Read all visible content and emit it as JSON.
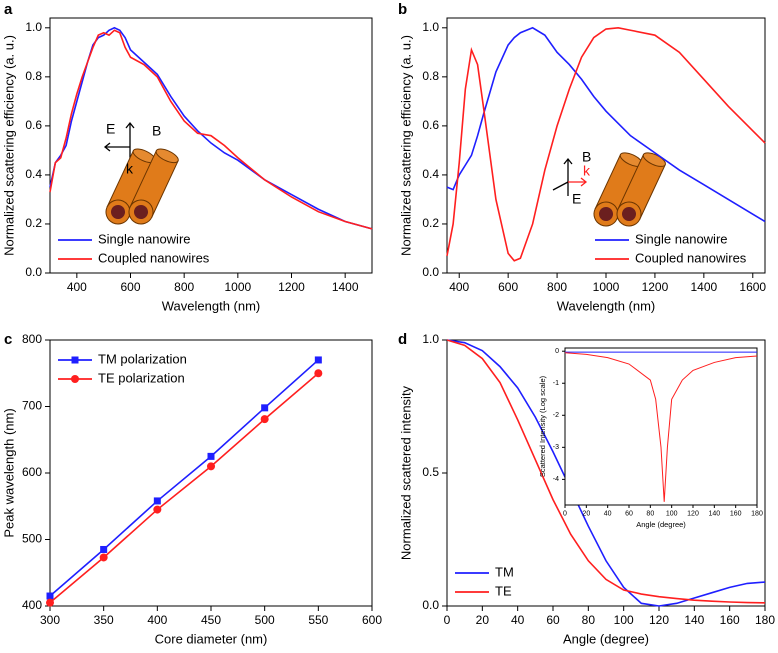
{
  "chart_data": [
    {
      "type": "line",
      "panel": "a",
      "x_label": "Wavelength (nm)",
      "y_label": "Normalized scattering efficiency (a. u.)",
      "xlim": [
        300,
        1500
      ],
      "xticks": [
        400,
        600,
        800,
        1000,
        1200,
        1400
      ],
      "ylim": [
        0,
        1.04
      ],
      "yticks": [
        {
          "value": 0,
          "label": "0.0"
        },
        0.2,
        0.4,
        0.6,
        0.8,
        {
          "value": 1,
          "label": "1.0"
        }
      ],
      "legend": "lower left",
      "annotations": [
        "E",
        "B",
        "k"
      ],
      "x": [
        300,
        320,
        340,
        360,
        380,
        400,
        420,
        440,
        460,
        480,
        500,
        520,
        540,
        560,
        580,
        600,
        650,
        700,
        750,
        800,
        850,
        900,
        950,
        1000,
        1100,
        1200,
        1300,
        1400,
        1500
      ],
      "series": [
        {
          "name": "Single nanowire",
          "color": "#1f1fff",
          "values": [
            0.35,
            0.45,
            0.48,
            0.52,
            0.62,
            0.7,
            0.78,
            0.86,
            0.93,
            0.96,
            0.97,
            0.99,
            1.0,
            0.99,
            0.96,
            0.91,
            0.86,
            0.81,
            0.72,
            0.64,
            0.58,
            0.53,
            0.49,
            0.46,
            0.38,
            0.32,
            0.26,
            0.21,
            0.18
          ]
        },
        {
          "name": "Coupled nanowires",
          "color": "#ff1f1f",
          "values": [
            0.33,
            0.45,
            0.47,
            0.55,
            0.65,
            0.73,
            0.8,
            0.86,
            0.92,
            0.97,
            0.98,
            0.97,
            0.99,
            0.98,
            0.92,
            0.88,
            0.85,
            0.8,
            0.7,
            0.62,
            0.57,
            0.56,
            0.52,
            0.47,
            0.38,
            0.31,
            0.25,
            0.21,
            0.18
          ]
        }
      ]
    },
    {
      "type": "line",
      "panel": "b",
      "x_label": "Wavelength (nm)",
      "y_label": "Normalized scattering efficiency (a. u.)",
      "xlim": [
        350,
        1650
      ],
      "xticks": [
        400,
        600,
        800,
        1000,
        1200,
        1400,
        1600
      ],
      "ylim": [
        0,
        1.04
      ],
      "yticks": [
        {
          "value": 0,
          "label": "0.0"
        },
        0.2,
        0.4,
        0.6,
        0.8,
        {
          "value": 1,
          "label": "1.0"
        }
      ],
      "legend": "lower right",
      "annotations": [
        "B",
        "k",
        "E"
      ],
      "x": [
        350,
        375,
        400,
        425,
        450,
        475,
        500,
        550,
        600,
        625,
        650,
        700,
        750,
        800,
        850,
        900,
        950,
        1000,
        1050,
        1100,
        1200,
        1300,
        1400,
        1500,
        1600,
        1650
      ],
      "series": [
        {
          "name": "Single nanowire",
          "color": "#1f1fff",
          "values": [
            0.35,
            0.34,
            0.4,
            0.44,
            0.48,
            0.56,
            0.65,
            0.82,
            0.93,
            0.96,
            0.98,
            1.0,
            0.97,
            0.9,
            0.85,
            0.79,
            0.72,
            0.66,
            0.61,
            0.56,
            0.49,
            0.42,
            0.36,
            0.3,
            0.24,
            0.21
          ]
        },
        {
          "name": "Coupled nanowires",
          "color": "#ff1f1f",
          "values": [
            0.07,
            0.2,
            0.45,
            0.75,
            0.91,
            0.85,
            0.67,
            0.3,
            0.08,
            0.05,
            0.06,
            0.2,
            0.42,
            0.6,
            0.75,
            0.88,
            0.96,
            0.995,
            1.0,
            0.99,
            0.97,
            0.9,
            0.79,
            0.68,
            0.58,
            0.53
          ]
        }
      ]
    },
    {
      "type": "line",
      "panel": "c",
      "x_label": "Core diameter (nm)",
      "y_label": "Peak wavelength (nm)",
      "xlim": [
        300,
        600
      ],
      "xticks": [
        300,
        350,
        400,
        450,
        500,
        550,
        600
      ],
      "ylim": [
        400,
        800
      ],
      "yticks": [
        400,
        500,
        600,
        700,
        800
      ],
      "legend": "upper left",
      "x": [
        300,
        350,
        400,
        450,
        500,
        550
      ],
      "series": [
        {
          "name": "TM polarization",
          "color": "#1f1fff",
          "marker": "square",
          "values": [
            415,
            485,
            558,
            625,
            698,
            770
          ]
        },
        {
          "name": "TE polarization",
          "color": "#ff1f1f",
          "marker": "circle",
          "values": [
            405,
            473,
            545,
            610,
            681,
            750
          ]
        }
      ]
    },
    {
      "type": "line",
      "panel": "d",
      "x_label": "Angle (degree)",
      "y_label": "Normalized scattered intensity",
      "xlim": [
        0,
        180
      ],
      "xticks": [
        0,
        20,
        40,
        60,
        80,
        100,
        120,
        140,
        160,
        180
      ],
      "ylim": [
        0,
        1
      ],
      "yticks": [
        {
          "value": 0,
          "label": "0.0"
        },
        0.5,
        {
          "value": 1,
          "label": "1.0"
        }
      ],
      "legend": "lower left",
      "x": [
        0,
        10,
        20,
        30,
        40,
        50,
        60,
        70,
        80,
        90,
        100,
        110,
        120,
        130,
        140,
        150,
        160,
        170,
        180
      ],
      "series": [
        {
          "name": "TM",
          "color": "#1f1fff",
          "values": [
            1.0,
            0.99,
            0.96,
            0.9,
            0.82,
            0.71,
            0.58,
            0.44,
            0.3,
            0.17,
            0.07,
            0.01,
            0.0,
            0.01,
            0.03,
            0.05,
            0.07,
            0.085,
            0.09
          ]
        },
        {
          "name": "TE",
          "color": "#ff1f1f",
          "values": [
            1.0,
            0.98,
            0.93,
            0.84,
            0.7,
            0.55,
            0.4,
            0.27,
            0.17,
            0.1,
            0.06,
            0.045,
            0.035,
            0.028,
            0.022,
            0.018,
            0.015,
            0.013,
            0.012
          ]
        }
      ]
    },
    {
      "type": "line",
      "x_label": "Angle (degree)",
      "y_label": "Scattered Intensity (Log scale)",
      "xlim": [
        0,
        180
      ],
      "xticks": [
        0,
        20,
        40,
        60,
        80,
        100,
        120,
        140,
        160,
        180
      ],
      "ylim": [
        -4.8,
        0.1
      ],
      "yticks": [
        -4,
        -3,
        -2,
        -1,
        0
      ],
      "x": [
        0,
        20,
        40,
        60,
        80,
        85,
        90,
        93,
        96,
        100,
        110,
        120,
        140,
        160,
        180
      ],
      "series": [
        {
          "color": "#1f1fff",
          "values": [
            -0.03,
            -0.03,
            -0.03,
            -0.03,
            -0.03,
            -0.03,
            -0.03,
            -0.03,
            -0.03,
            -0.03,
            -0.03,
            -0.03,
            -0.03,
            -0.03,
            -0.03
          ]
        },
        {
          "color": "#ff1f1f",
          "values": [
            -0.05,
            -0.1,
            -0.2,
            -0.4,
            -0.9,
            -1.5,
            -3.0,
            -4.7,
            -3.0,
            -1.5,
            -0.9,
            -0.6,
            -0.35,
            -0.2,
            -0.15
          ]
        }
      ]
    }
  ]
}
